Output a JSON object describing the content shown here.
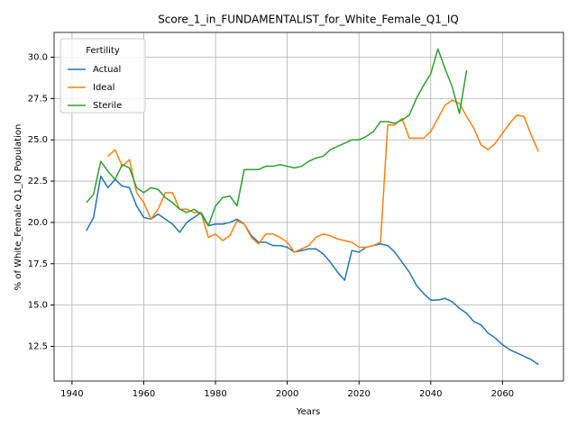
{
  "chart_data": {
    "type": "line",
    "title": "Score_1_in_FUNDAMENTALIST_for_White_Female_Q1_IQ",
    "x_label": "Years",
    "y_label": "% of White_Female Q1_IQ Population",
    "legend_title": "Fertility",
    "legend": "upper left",
    "grid": true,
    "x": [
      1944,
      1946,
      1948,
      1950,
      1952,
      1954,
      1956,
      1958,
      1960,
      1962,
      1964,
      1966,
      1968,
      1970,
      1972,
      1974,
      1976,
      1978,
      1980,
      1982,
      1984,
      1986,
      1988,
      1990,
      1992,
      1994,
      1996,
      1998,
      2000,
      2002,
      2004,
      2006,
      2008,
      2010,
      2012,
      2014,
      2016,
      2018,
      2020,
      2022,
      2024,
      2026,
      2028,
      2030,
      2032,
      2034,
      2036,
      2038,
      2040,
      2042,
      2044,
      2046,
      2048,
      2050,
      2052,
      2054,
      2056,
      2058,
      2060,
      2062,
      2064,
      2066,
      2068,
      2070
    ],
    "series": [
      {
        "name": "Actual",
        "color": "#1f77b4",
        "values": [
          19.5,
          20.3,
          22.8,
          22.1,
          22.6,
          22.2,
          22.1,
          21.0,
          20.3,
          20.2,
          20.5,
          20.2,
          19.9,
          19.4,
          20.0,
          20.3,
          20.6,
          19.8,
          19.9,
          19.9,
          20.0,
          20.2,
          19.9,
          19.2,
          18.8,
          18.8,
          18.6,
          18.6,
          18.5,
          18.2,
          18.3,
          18.4,
          18.4,
          18.1,
          17.6,
          17.0,
          16.5,
          18.3,
          18.2,
          18.5,
          18.6,
          18.7,
          18.6,
          18.2,
          17.6,
          17.0,
          16.2,
          15.7,
          15.3,
          15.3,
          15.4,
          15.2,
          14.8,
          14.5,
          14.0,
          13.8,
          13.3,
          13.0,
          12.6,
          12.3,
          12.1,
          11.9,
          11.7,
          11.4
        ]
      },
      {
        "name": "Ideal",
        "color": "#ff7f0e",
        "values": [
          null,
          null,
          null,
          24.0,
          24.4,
          23.4,
          23.8,
          21.8,
          21.2,
          20.2,
          20.8,
          21.8,
          21.8,
          20.8,
          20.8,
          20.6,
          20.6,
          19.1,
          19.3,
          18.9,
          19.2,
          20.1,
          19.9,
          19.1,
          18.7,
          19.3,
          19.3,
          19.1,
          18.8,
          18.2,
          18.4,
          18.6,
          19.1,
          19.3,
          19.2,
          19.0,
          18.9,
          18.8,
          18.5,
          18.5,
          18.6,
          18.8,
          25.9,
          25.9,
          26.3,
          25.1,
          25.1,
          25.1,
          25.5,
          26.3,
          27.1,
          27.4,
          27.2,
          26.4,
          25.7,
          24.7,
          24.4,
          24.8,
          25.4,
          26.0,
          26.5,
          26.4,
          25.3,
          24.3
        ]
      },
      {
        "name": "Sterile",
        "color": "#2ca02c",
        "values": [
          21.2,
          21.7,
          23.7,
          23.1,
          22.6,
          23.5,
          23.3,
          22.1,
          21.8,
          22.1,
          22.0,
          21.5,
          21.2,
          20.8,
          20.6,
          20.8,
          20.5,
          19.8,
          21.0,
          21.5,
          21.6,
          21.0,
          23.2,
          23.2,
          23.2,
          23.4,
          23.4,
          23.5,
          23.4,
          23.3,
          23.4,
          23.7,
          23.9,
          24.0,
          24.4,
          24.6,
          24.8,
          25.0,
          25.0,
          25.2,
          25.5,
          26.1,
          26.1,
          26.0,
          26.2,
          26.5,
          27.5,
          28.3,
          29.0,
          30.5,
          29.3,
          28.2,
          26.6,
          29.2,
          null,
          null,
          null,
          null,
          null,
          null,
          null,
          null,
          null,
          null
        ]
      }
    ],
    "xlim": [
      1935,
      2077
    ],
    "ylim": [
      10.4,
      31.5
    ],
    "xticks": [
      1940,
      1960,
      1980,
      2000,
      2020,
      2040,
      2060
    ],
    "yticks": [
      12.5,
      {
        "value": 15,
        "label": "15.0"
      },
      17.5,
      {
        "value": 20,
        "label": "20.0"
      },
      22.5,
      {
        "value": 25,
        "label": "25.0"
      },
      27.5,
      {
        "value": 30,
        "label": "30.0"
      }
    ]
  }
}
